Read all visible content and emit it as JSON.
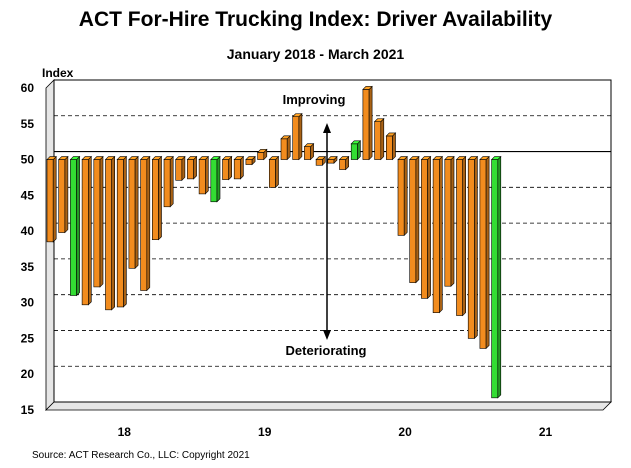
{
  "title": "ACT For-Hire Trucking Index: Driver Availability",
  "subtitle": "January 2018 - March 2021",
  "source": "Source: ACT Research Co., LLC: Copyright 2021",
  "chart_data": {
    "type": "bar",
    "title": "ACT For-Hire Trucking Index: Driver Availability",
    "subtitle": "January 2018 - March 2021",
    "ylabel": "Index",
    "xlabel": "",
    "ylim": [
      15,
      60
    ],
    "yticks": [
      15,
      20,
      25,
      30,
      35,
      40,
      45,
      50,
      55,
      60
    ],
    "baseline": 50,
    "xtick_labels": [
      {
        "label": "18",
        "month_index": 6
      },
      {
        "label": "19",
        "month_index": 18
      },
      {
        "label": "20",
        "month_index": 30
      },
      {
        "label": "21",
        "month_index": 42
      }
    ],
    "months": [
      "Jan 2018",
      "Feb 2018",
      "Mar 2018",
      "Apr 2018",
      "May 2018",
      "Jun 2018",
      "Jul 2018",
      "Aug 2018",
      "Sep 2018",
      "Oct 2018",
      "Nov 2018",
      "Dec 2018",
      "Jan 2019",
      "Feb 2019",
      "Mar 2019",
      "Apr 2019",
      "May 2019",
      "Jun 2019",
      "Jul 2019",
      "Aug 2019",
      "Sep 2019",
      "Oct 2019",
      "Nov 2019",
      "Dec 2019",
      "Jan 2020",
      "Feb 2020",
      "Mar 2020",
      "Apr 2020",
      "May 2020",
      "Jun 2020",
      "Jul 2020",
      "Aug 2020",
      "Sep 2020",
      "Oct 2020",
      "Nov 2020",
      "Dec 2020",
      "Jan 2021",
      "Feb 2021",
      "Mar 2021"
    ],
    "values": [
      38.5,
      39.8,
      31.0,
      29.7,
      32.2,
      29.0,
      29.4,
      34.8,
      31.7,
      38.8,
      43.4,
      47.1,
      47.3,
      45.2,
      44.1,
      47.2,
      47.3,
      49.3,
      51.0,
      46.1,
      52.9,
      56.0,
      51.8,
      49.2,
      49.5,
      48.6,
      52.2,
      59.8,
      55.3,
      53.3,
      39.4,
      32.8,
      30.6,
      28.6,
      32.3,
      28.2,
      25.0,
      23.6,
      16.7
    ],
    "highlighted_months": [
      "Mar 2018",
      "Mar 2019",
      "Mar 2020",
      "Mar 2021"
    ],
    "colors": {
      "bar": "#f28c1e",
      "highlight": "#33dd33",
      "plot_bg": "#ffffff"
    },
    "annotations": {
      "up": "Improving",
      "down": "Deteriorating"
    },
    "grid": true
  }
}
